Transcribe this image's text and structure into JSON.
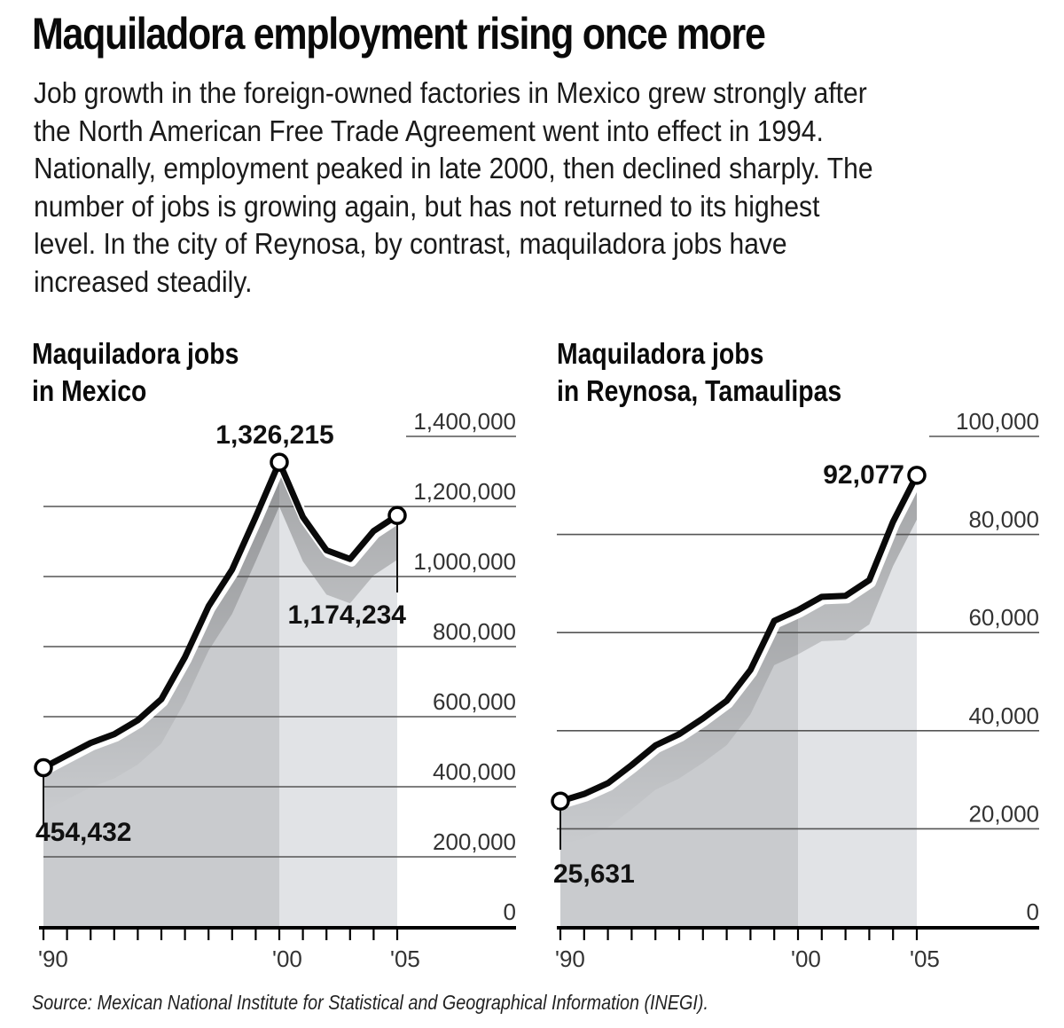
{
  "headline": "Maquiladora employment rising once more",
  "dek": [
    "Job growth in the foreign-owned factories in Mexico grew strongly after",
    "the North American Free Trade Agreement went into effect in 1994.",
    "Nationally, employment peaked in late 2000, then declined sharply. The",
    "number of jobs is growing again, but has not returned to its highest",
    "level. In the city of Reynosa, by contrast, maquiladora jobs have",
    "increased steadily."
  ],
  "source": "Source: Mexican National Institute for Statistical and Geographical Information (INEGI).",
  "colors": {
    "line": "#0a0a0a",
    "fill_pre2000": "#c9cbce",
    "fill_post2000": "#e1e3e6",
    "gridline": "#555555",
    "axis": "#000000"
  },
  "chart_data": [
    {
      "type": "area",
      "title_line1": "Maquiladora jobs",
      "title_line2": "in Mexico",
      "xlabel": "",
      "ylabel": "",
      "x": [
        1990,
        1991,
        1992,
        1993,
        1994,
        1995,
        1996,
        1997,
        1998,
        1999,
        2000,
        2001,
        2002,
        2003,
        2004,
        2005
      ],
      "x_tick_labels": [
        "'90",
        "'00",
        "'05"
      ],
      "values": [
        454432,
        490000,
        525000,
        550000,
        590000,
        650000,
        770000,
        915000,
        1020000,
        1170000,
        1326215,
        1170000,
        1075000,
        1050000,
        1130000,
        1174234
      ],
      "y_ticks": [
        0,
        200000,
        400000,
        600000,
        800000,
        1000000,
        1200000,
        1400000
      ],
      "y_tick_labels": [
        "0",
        "200,000",
        "400,000",
        "600,000",
        "800,000",
        "1,000,000",
        "1,200,000",
        "1,400,000"
      ],
      "ylim": [
        0,
        1400000
      ],
      "grid": true,
      "annotations": [
        {
          "year": 1990,
          "label": "454,432"
        },
        {
          "year": 2000,
          "label": "1,326,215"
        },
        {
          "year": 2005,
          "label": "1,174,234"
        }
      ]
    },
    {
      "type": "area",
      "title_line1": "Maquiladora jobs",
      "title_line2": "in Reynosa, Tamaulipas",
      "xlabel": "",
      "ylabel": "",
      "x": [
        1990,
        1991,
        1992,
        1993,
        1994,
        1995,
        1996,
        1997,
        1998,
        1999,
        2000,
        2001,
        2002,
        2003,
        2004,
        2005
      ],
      "x_tick_labels": [
        "'90",
        "'00",
        "'05"
      ],
      "values": [
        25631,
        27100,
        29300,
        33000,
        37000,
        39300,
        42500,
        46100,
        52400,
        62400,
        64600,
        67300,
        67500,
        70700,
        82600,
        92077
      ],
      "y_ticks": [
        0,
        20000,
        40000,
        60000,
        80000,
        100000
      ],
      "y_tick_labels": [
        "0",
        "20,000",
        "40,000",
        "60,000",
        "80,000",
        "100,000"
      ],
      "ylim": [
        0,
        100000
      ],
      "grid": true,
      "annotations": [
        {
          "year": 1990,
          "label": "25,631"
        },
        {
          "year": 2005,
          "label": "92,077"
        }
      ]
    }
  ]
}
